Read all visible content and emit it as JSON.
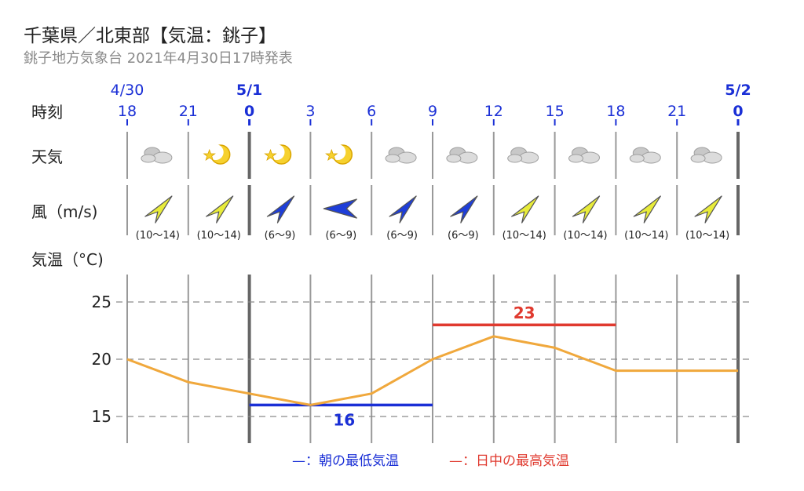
{
  "header": {
    "title": "千葉県／北東部【気温：銚子】",
    "subtitle": "銚子地方気象台 2021年4月30日17時発表"
  },
  "rows": {
    "time_label": "時刻",
    "weather_label": "天気",
    "wind_label": "風（m/s)",
    "temp_label": "気温（°C)"
  },
  "chart_data": {
    "type": "line",
    "dates": [
      {
        "label": "4/30",
        "at_index": 0
      },
      {
        "label": "5/1",
        "at_index": 2
      },
      {
        "label": "5/2",
        "at_index": 10
      }
    ],
    "hours": [
      "18",
      "21",
      "0",
      "3",
      "6",
      "9",
      "12",
      "15",
      "18",
      "21",
      "0"
    ],
    "weather": [
      "cloudy",
      "moon-clear",
      "moon-clear",
      "moon-clear",
      "cloudy",
      "cloudy",
      "cloudy",
      "cloudy",
      "cloudy",
      "cloudy"
    ],
    "wind": [
      {
        "speed": "(10〜14)",
        "toward": "northeast",
        "color": "#e8ec3a"
      },
      {
        "speed": "(10〜14)",
        "toward": "northeast",
        "color": "#e8ec3a"
      },
      {
        "speed": "(6〜9)",
        "toward": "northeast",
        "color": "#1e3ed8"
      },
      {
        "speed": "(6〜9)",
        "toward": "west",
        "color": "#1e3ed8"
      },
      {
        "speed": "(6〜9)",
        "toward": "northeast",
        "color": "#1e3ed8"
      },
      {
        "speed": "(6〜9)",
        "toward": "northeast",
        "color": "#1e3ed8"
      },
      {
        "speed": "(10〜14)",
        "toward": "northeast",
        "color": "#e8ec3a"
      },
      {
        "speed": "(10〜14)",
        "toward": "northeast",
        "color": "#e8ec3a"
      },
      {
        "speed": "(10〜14)",
        "toward": "northeast",
        "color": "#e8ec3a"
      },
      {
        "speed": "(10〜14)",
        "toward": "northeast",
        "color": "#e8ec3a"
      }
    ],
    "temperature": [
      20,
      18,
      17,
      16,
      17,
      20,
      22,
      21,
      19,
      19,
      19
    ],
    "yticks": [
      25,
      20,
      15
    ],
    "ylim": [
      12.5,
      27
    ],
    "max_temp": {
      "value": "23",
      "y": 23,
      "from_index": 5,
      "to_index": 8
    },
    "min_temp": {
      "value": "16",
      "y": 16,
      "from_index": 2,
      "to_index": 5
    },
    "grid": true,
    "colors": {
      "line": "#f0a83c",
      "max": "#e03a2f",
      "min": "#1a2fd6",
      "tick": "#1a2fd6"
    }
  },
  "legend": {
    "min_label": "—：朝の最低気温",
    "max_label": "—：日中の最高気温"
  }
}
